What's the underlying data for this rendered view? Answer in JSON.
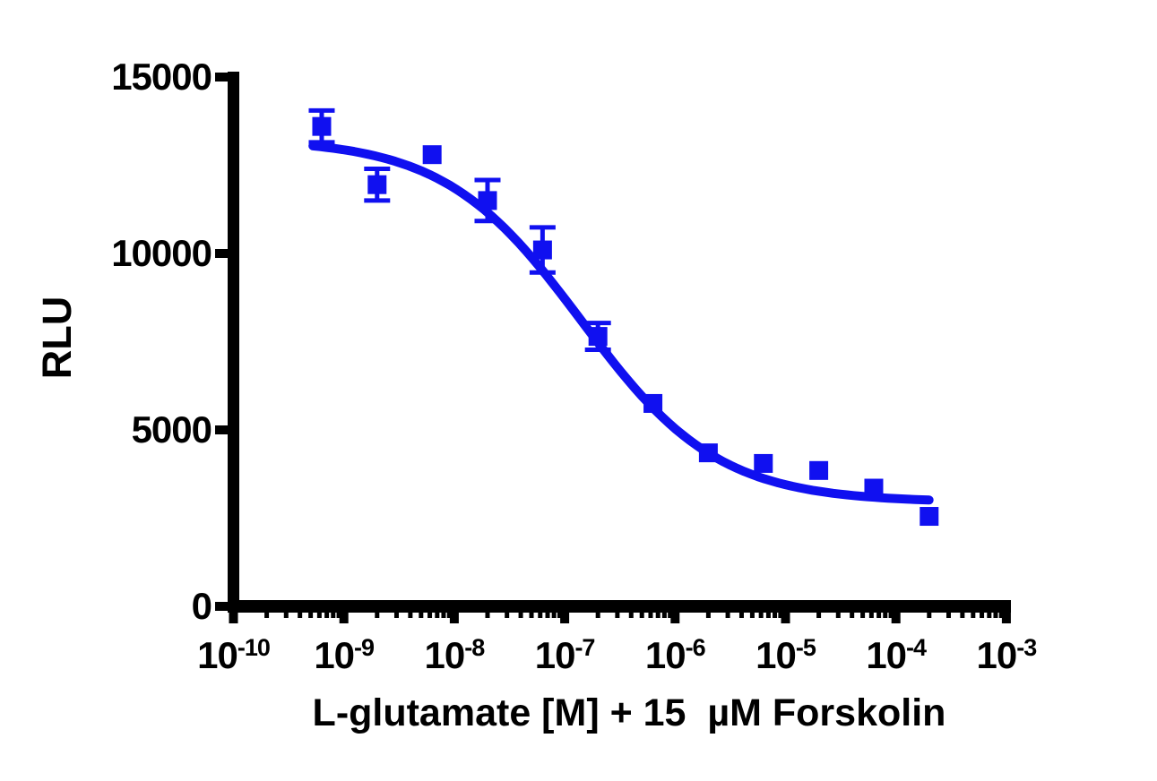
{
  "figure": {
    "background": "#ffffff",
    "axis_color": "#000000"
  },
  "chart_data": {
    "type": "scatter",
    "subtype": "dose-response inhibition curve with logistic fit",
    "title": "",
    "xlabel": "L-glutamate [M] + 15  µM Forskolin",
    "ylabel": "RLU",
    "x_scale": "log10",
    "x_tick_base": "10",
    "x_tick_exponents": [
      "-10",
      "-9",
      "-8",
      "-7",
      "-6",
      "-5",
      "-4",
      "-3"
    ],
    "x_minor_ticks": "log sub-decades 2-9",
    "xlim_log10": [
      -10,
      -2.96
    ],
    "y_ticks": [
      "0",
      "5000",
      "10000",
      "15000"
    ],
    "y_tick_values": [
      0,
      5000,
      10000,
      15000
    ],
    "ylim": [
      0,
      15000
    ],
    "grid": false,
    "legend_position": "none",
    "series": [
      {
        "name": "L-glutamate + 15 µM Forskolin",
        "marker": "square",
        "marker_color": "#1010f0",
        "error_bars": "SEM, caps, same color",
        "points": [
          {
            "conc_M": 6.3e-10,
            "rlu": 13600,
            "sem": 450
          },
          {
            "conc_M": 2e-09,
            "rlu": 11950,
            "sem": 450
          },
          {
            "conc_M": 6.3e-09,
            "rlu": 12800,
            "sem": 0
          },
          {
            "conc_M": 2e-08,
            "rlu": 11500,
            "sem": 580
          },
          {
            "conc_M": 6.3e-08,
            "rlu": 10100,
            "sem": 640
          },
          {
            "conc_M": 2e-07,
            "rlu": 7650,
            "sem": 380
          },
          {
            "conc_M": 6.3e-07,
            "rlu": 5750,
            "sem": 0
          },
          {
            "conc_M": 2e-06,
            "rlu": 4350,
            "sem": 0
          },
          {
            "conc_M": 6.3e-06,
            "rlu": 4050,
            "sem": 0
          },
          {
            "conc_M": 2e-05,
            "rlu": 3850,
            "sem": 0
          },
          {
            "conc_M": 6.3e-05,
            "rlu": 3350,
            "sem": 0
          },
          {
            "conc_M": 0.0002,
            "rlu": 2550,
            "sem": 0
          }
        ]
      }
    ],
    "fit_curve": {
      "model": "log(inhibitor) vs. response, variable slope (4PL)",
      "top_rlu": 13250,
      "bottom_rlu": 2950,
      "log_ic50": -6.85,
      "ic50_M": 1.4e-07,
      "hill_slope": -0.7,
      "x_log_range": [
        -9.28,
        -3.7
      ],
      "color": "#1010f0",
      "stroke_width": 10
    }
  }
}
